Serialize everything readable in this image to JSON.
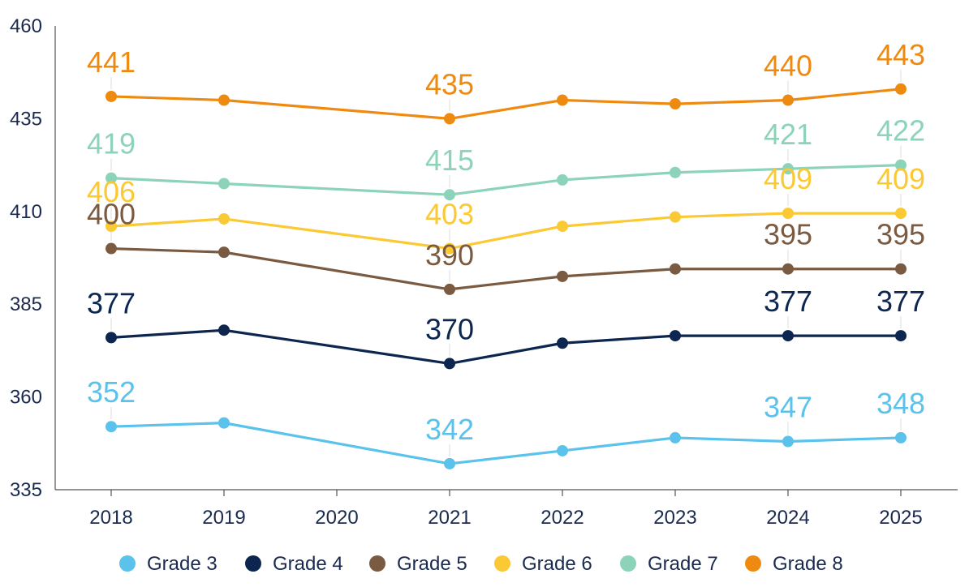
{
  "chart_data": {
    "type": "line",
    "categories": [
      "2018",
      "2019",
      "2020",
      "2021",
      "2022",
      "2023",
      "2024",
      "2025"
    ],
    "ylim": [
      335,
      460
    ],
    "yticks": [
      335,
      360,
      385,
      410,
      435,
      460
    ],
    "grid": false,
    "legend_position": "bottom",
    "series": [
      {
        "name": "Grade 3",
        "color": "#5bc2ec",
        "values": [
          352,
          353,
          null,
          342,
          345.5,
          349,
          348,
          349
        ],
        "labels": {
          "2018": "352",
          "2021": "342",
          "2024": "347",
          "2025": "348"
        }
      },
      {
        "name": "Grade 4",
        "color": "#0d2650",
        "values": [
          376,
          378,
          null,
          369,
          374.5,
          376.5,
          376.5,
          376.5
        ],
        "labels": {
          "2018": "377",
          "2021": "370",
          "2024": "377",
          "2025": "377"
        }
      },
      {
        "name": "Grade 5",
        "color": "#7a5a40",
        "values": [
          400,
          399,
          null,
          389,
          392.5,
          394.5,
          394.5,
          394.5
        ],
        "labels": {
          "2018": "400",
          "2021": "390",
          "2024": "395",
          "2025": "395"
        }
      },
      {
        "name": "Grade 6",
        "color": "#fbc934",
        "values": [
          406,
          408,
          null,
          400,
          406,
          408.5,
          409.5,
          409.5
        ],
        "labels": {
          "2018": "406",
          "2021": "403",
          "2024": "409",
          "2025": "409"
        }
      },
      {
        "name": "Grade 7",
        "color": "#8dd3b9",
        "values": [
          419,
          417.5,
          null,
          414.5,
          418.5,
          420.5,
          421.5,
          422.5
        ],
        "labels": {
          "2018": "419",
          "2021": "415",
          "2024": "421",
          "2025": "422"
        }
      },
      {
        "name": "Grade 8",
        "color": "#ef8a10",
        "values": [
          441,
          440,
          null,
          435,
          440,
          439,
          440,
          443
        ],
        "labels": {
          "2018": "441",
          "2021": "435",
          "2024": "440",
          "2025": "443"
        }
      }
    ]
  }
}
